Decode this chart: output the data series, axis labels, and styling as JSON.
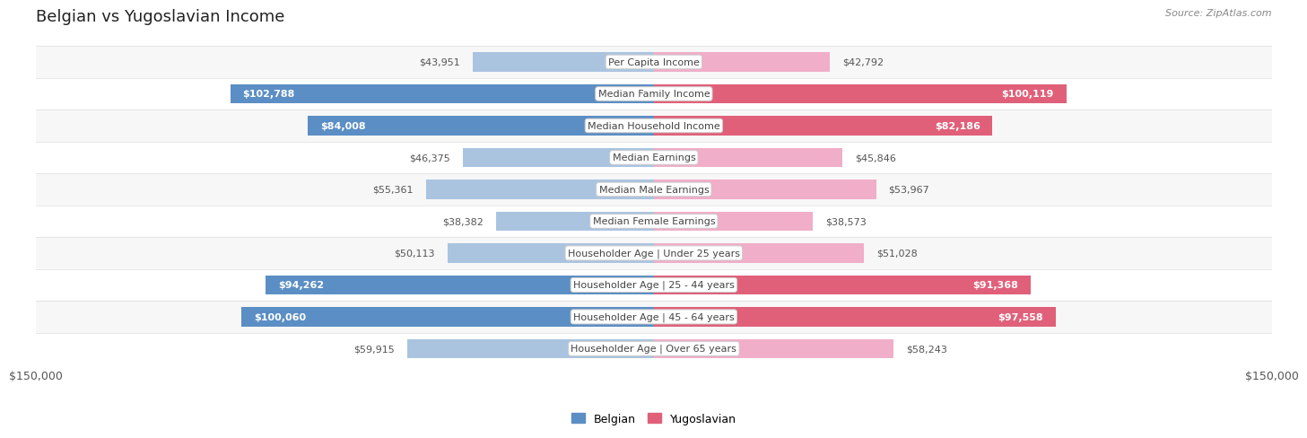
{
  "title": "Belgian vs Yugoslavian Income",
  "source": "Source: ZipAtlas.com",
  "categories": [
    "Per Capita Income",
    "Median Family Income",
    "Median Household Income",
    "Median Earnings",
    "Median Male Earnings",
    "Median Female Earnings",
    "Householder Age | Under 25 years",
    "Householder Age | 25 - 44 years",
    "Householder Age | 45 - 64 years",
    "Householder Age | Over 65 years"
  ],
  "belgian_values": [
    43951,
    102788,
    84008,
    46375,
    55361,
    38382,
    50113,
    94262,
    100060,
    59915
  ],
  "yugoslavian_values": [
    42792,
    100119,
    82186,
    45846,
    53967,
    38573,
    51028,
    91368,
    97558,
    58243
  ],
  "belgian_labels": [
    "$43,951",
    "$102,788",
    "$84,008",
    "$46,375",
    "$55,361",
    "$38,382",
    "$50,113",
    "$94,262",
    "$100,060",
    "$59,915"
  ],
  "yugoslavian_labels": [
    "$42,792",
    "$100,119",
    "$82,186",
    "$45,846",
    "$53,967",
    "$38,573",
    "$51,028",
    "$91,368",
    "$97,558",
    "$58,243"
  ],
  "xlim": 150000,
  "xlabel_left": "$150,000",
  "xlabel_right": "$150,000",
  "belgian_color_light": "#aac4e0",
  "belgian_color_dark": "#5b8ec4",
  "yugoslavian_color_light": "#f0aec8",
  "yugoslavian_color_dark": "#e0607a",
  "dark_threshold": 70000,
  "bar_height": 0.6,
  "row_color_odd": "#f7f7f7",
  "row_color_even": "#ffffff",
  "legend_belgian": "Belgian",
  "legend_yugoslavian": "Yugoslavian",
  "title_fontsize": 13,
  "label_fontsize": 8,
  "cat_fontsize": 8
}
